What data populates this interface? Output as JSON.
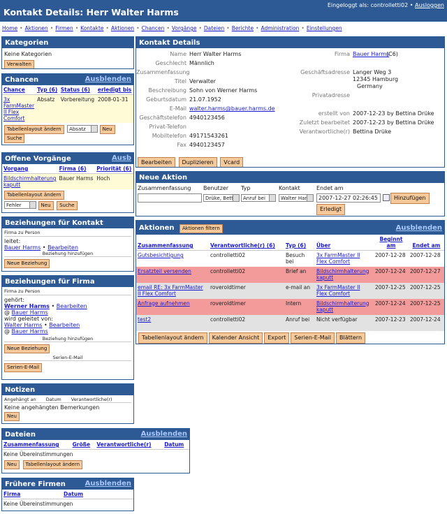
{
  "header": {
    "title": "Kontakt Details: Herr Walter Harms",
    "logged_in_label": "Eingeloggt als: controlletti02",
    "bullet": "•",
    "logout": "Ausloggen"
  },
  "nav": [
    "Home",
    "Aktionen",
    "Firmen",
    "Kontakte",
    "Aktionen",
    "Chancen",
    "Vorgänge",
    "Dateien",
    "Berichte",
    "Administration",
    "Einstellungen"
  ],
  "kategorien": {
    "title": "Kategorien",
    "text": "Keine Kategorien",
    "button": "Verwalten"
  },
  "chancen": {
    "title": "Chancen",
    "hide": "Ausblenden",
    "cols": [
      "Chance",
      "Typ",
      "(6)",
      "Status",
      "(6)",
      "erledigt bis"
    ],
    "row": {
      "chance": "3x FarmMaster II Flex Comfort",
      "typ": "Absatz",
      "status": "Vorbereitung",
      "date": "2008-01-31"
    },
    "btn_layout": "Tabellenlayout ändern",
    "select": "Absatz",
    "btn_new": "Neu",
    "btn_search": "Suche"
  },
  "vorgaenge": {
    "title": "Offene Vorgänge",
    "hide": "Ausb",
    "cols": [
      "Vorgang",
      "Firma",
      "(6)",
      "Priorität",
      "(6)"
    ],
    "row": {
      "vorgang": "Bildschirmhalterung kaputt",
      "firma": "Bauer Harms",
      "prio": "Hoch",
      "extra": "2"
    },
    "btn_layout": "Tabellenlayout ändern",
    "select": "Fehler",
    "btn_new": "Neu",
    "btn_search": "Suche"
  },
  "bez_kontakt": {
    "title": "Beziehungen für Kontakt",
    "sub": "Firma zu Person",
    "leitet": "leitet:",
    "firma": "Bauer Harms",
    "edit": "Bearbeiten",
    "add": "Beziehung hinzufügen",
    "btn": "Neue Beziehung"
  },
  "bez_firma": {
    "title": "Beziehungen für Firma",
    "sub": "Firma zu Person",
    "gehoert": "gehört:",
    "person": "Werner Harms",
    "edit": "Bearbeiten",
    "at": "@",
    "firma": "Bauer Harms",
    "geleitet": "wird geleitet von:",
    "person2": "Walter Harms",
    "edit2": "Bearbeiten",
    "firma2": "Bauer Harms",
    "add": "Beziehung hinzufügen",
    "btn": "Neue Beziehung",
    "serien_label": "Serien-E-Mail",
    "serien_btn": "Serien-E-Mail"
  },
  "notizen": {
    "title": "Notizen",
    "cols": [
      "Angehängt an",
      "Datum",
      "Verantwortliche(r)"
    ],
    "empty": "Keine angehängten Bemerkungen",
    "btn": "Neu"
  },
  "dateien": {
    "title": "Dateien",
    "hide": "Ausblenden",
    "cols": [
      "Zusammenfassung",
      "Größe",
      "Verantwortliche(r)",
      "Datum"
    ],
    "empty": "Keine Übereinstimmungen",
    "btn_new": "Neu",
    "btn_layout": "Tabellenlayout ändern"
  },
  "firmen": {
    "title": "Frühere Firmen",
    "hide": "Ausblenden",
    "cols": [
      "Firma",
      "Datum"
    ],
    "empty": "Keine Übereinstimmungen"
  },
  "details": {
    "title": "Kontakt Details",
    "name_k": "Name",
    "name_v": "Herr Walter Harms",
    "geschlecht_k": "Geschlecht",
    "geschlecht_v": "Männlich",
    "zus_k": "Zusammenfassung",
    "titel_k": "Titel",
    "titel_v": "Verwalter",
    "beschr_k": "Beschreibung",
    "beschr_v": "Sohn von Werner Harms",
    "geb_k": "Geburtsdatum",
    "geb_v": "21.07.1952",
    "email_k": "E-Mail",
    "email_v": "walter.harms@bauer.harms.de",
    "gtel_k": "Geschäftstelefon",
    "gtel_v": "4940123456",
    "ptel_k": "Privat-Telefon",
    "mobil_k": "Mobiltelefon",
    "mobil_v": "49171543261",
    "fax_k": "Fax",
    "fax_v": "4940123457",
    "firma_k": "Firma",
    "firma_v": "Bauer Harms",
    "firma_c": "(C6)",
    "gadr_k": "Geschäftsadresse",
    "gadr_1": "Langer Weg 3",
    "gadr_2": "12345 Hamburg",
    "gadr_3": "Germany",
    "padr_k": "Privatadresse",
    "erstellt_k": "erstellt von",
    "erstellt_v": "2007-12-23 by Bettina Drüke",
    "zuletzt_k": "Zuletzt bearbeitet",
    "zuletzt_v": "2007-12-23 by Bettina Drüke",
    "verant_k": "Verantwortliche(r)",
    "verant_v": "Bettina Drüke",
    "btn_edit": "Bearbeiten",
    "btn_dup": "Duplizieren",
    "btn_vcard": "Vcard"
  },
  "neue_aktion": {
    "title": "Neue Aktion",
    "cols": [
      "Zusammenfassung",
      "Benutzer",
      "Typ",
      "Kontakt",
      "Endet am"
    ],
    "benutzer": "Drüke, Bett",
    "typ": "Anruf bei",
    "kontakt": "Walter Han",
    "endet": "2007-12-27 02:26:45",
    "btn_add": "Hinzufügen",
    "btn_done": "Erledigt"
  },
  "aktionen": {
    "title": "Aktionen",
    "filter": "Aktionen filtern",
    "hide": "Ausblenden",
    "cols": [
      "Zusammenfassung",
      "Verantwortliche(r)",
      "(6)",
      "Typ",
      "(6)",
      "Über",
      "Beginnt am",
      "Endet am"
    ],
    "rows": [
      {
        "sum": "Gutsbesichtigung",
        "ver": "controlletti02",
        "typ": "Besuch bei",
        "ueber": "3x FarmMaster II Flex Comfort",
        "beg": "2007-12-28",
        "end": "2007-12-28",
        "cls": "row-w"
      },
      {
        "sum": "Ersatzteil versenden",
        "ver": "controlletti02",
        "typ": "Brief an",
        "ueber": "Bildschirmhalterung kaputt",
        "beg": "2007-12-24",
        "end": "2007-12-27",
        "cls": "row-r"
      },
      {
        "sum": "email RE: 3x FarmMaster II Flex Comfort",
        "ver": "roveroldtimer",
        "typ": "e-mail an",
        "ueber": "3x FarmMaster II Flex Comfort",
        "beg": "2007-12-25",
        "end": "2007-12-25",
        "cls": "row-g"
      },
      {
        "sum": "Anfrage aufnehmen",
        "ver": "roveroldtimer",
        "typ": "Intern",
        "ueber": "Bildschirmhalterung kaputt",
        "beg": "2007-12-24",
        "end": "2007-12-25",
        "cls": "row-r"
      },
      {
        "sum": "test2",
        "ver": "controlletti02",
        "typ": "Anruf bei",
        "ueber": "Nicht verfügbar",
        "beg": "2007-12-23",
        "end": "2007-12-24",
        "cls": "row-g"
      }
    ],
    "btns": [
      "Tabellenlayout ändern",
      "Kalender Ansicht",
      "Export",
      "Serien-E-Mail",
      "Blättern"
    ]
  }
}
